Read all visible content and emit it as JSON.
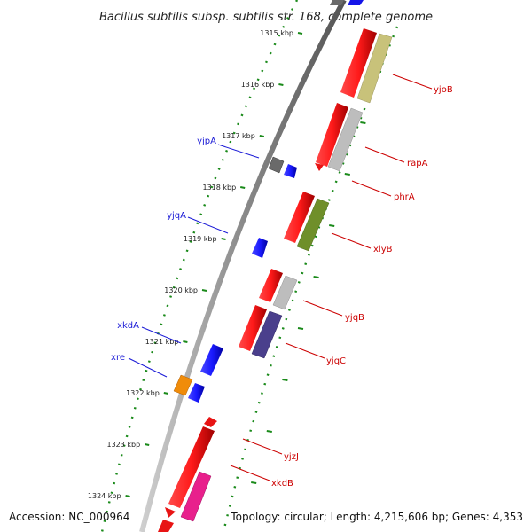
{
  "title": "Bacillus subtilis subsp. subtilis str. 168, complete genome",
  "accession_label": "Accession: NC_000964",
  "topology_label": "Topology: circular; Length: 4,215,606 bp; Genes: 4,353",
  "ticks": [
    {
      "kbp": 1315,
      "label": "1315 kbp"
    },
    {
      "kbp": 1316,
      "label": "1316 kbp"
    },
    {
      "kbp": 1317,
      "label": "1317 kbp"
    },
    {
      "kbp": 1318,
      "label": "1318 kbp"
    },
    {
      "kbp": 1319,
      "label": "1319 kbp"
    },
    {
      "kbp": 1320,
      "label": "1320 kbp"
    },
    {
      "kbp": 1321,
      "label": "1321 kbp"
    },
    {
      "kbp": 1322,
      "label": "1322 kbp"
    },
    {
      "kbp": 1323,
      "label": "1323 kbp"
    },
    {
      "kbp": 1324,
      "label": "1324 kbp"
    }
  ],
  "reverse_labels": [
    {
      "name": "yjpA",
      "color": "#1a1ad6"
    },
    {
      "name": "yjqA",
      "color": "#1a1ad6"
    },
    {
      "name": "xkdA",
      "color": "#1a1ad6"
    },
    {
      "name": "xre",
      "color": "#1a1ad6"
    }
  ],
  "forward_labels": [
    {
      "name": "yjoB",
      "color": "#cc0000"
    },
    {
      "name": "rapA",
      "color": "#cc0000"
    },
    {
      "name": "phrA",
      "color": "#cc0000"
    },
    {
      "name": "xlyB",
      "color": "#cc0000"
    },
    {
      "name": "yjqB",
      "color": "#cc0000"
    },
    {
      "name": "yjqC",
      "color": "#cc0000"
    },
    {
      "name": "yjzJ",
      "color": "#cc0000"
    },
    {
      "name": "xkdB",
      "color": "#cc0000"
    }
  ],
  "colors": {
    "forward_gene": "#e81414",
    "reverse_gene": "#1414e8",
    "backbone": "#808080",
    "tick_dots": "#1a8a1a",
    "khaki": "#c8c27a",
    "silver": "#bdbdbd",
    "olive": "#6f8f2a",
    "slate": "#4a3f8c",
    "orange": "#f08c0a",
    "magenta": "#e8208c",
    "darkgray": "#6a6a6a"
  }
}
